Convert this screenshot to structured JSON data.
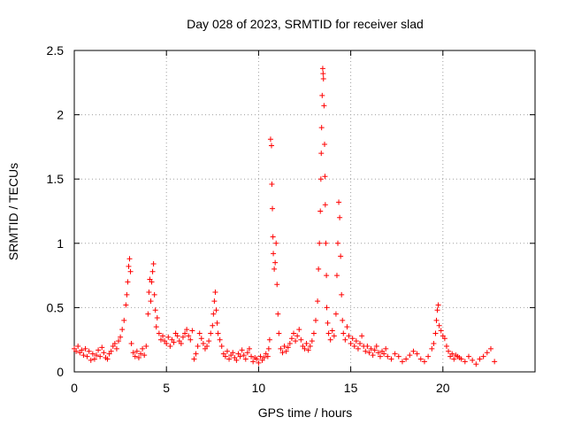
{
  "chart_data": {
    "type": "scatter",
    "title": "Day 028 of 2023, SRMTID for receiver slad",
    "xlabel": "GPS time / hours",
    "ylabel": "SRMTID / TECUs",
    "xlim": [
      0,
      25
    ],
    "ylim": [
      0,
      2.5
    ],
    "x_ticks": [
      0,
      5,
      10,
      15,
      20
    ],
    "x_tick_labels": [
      "0",
      "5",
      "10",
      "15",
      "20"
    ],
    "y_ticks": [
      0,
      0.5,
      1,
      1.5,
      2,
      2.5
    ],
    "y_tick_labels": [
      "0",
      "0.5",
      "1",
      "1.5",
      "2",
      "2.5"
    ],
    "grid": true,
    "marker": "+",
    "marker_color": "#ff0000",
    "series": [
      {
        "name": "SRMTID",
        "points": [
          [
            0.0,
            0.18
          ],
          [
            0.1,
            0.16
          ],
          [
            0.2,
            0.2
          ],
          [
            0.3,
            0.15
          ],
          [
            0.4,
            0.17
          ],
          [
            0.5,
            0.13
          ],
          [
            0.6,
            0.18
          ],
          [
            0.7,
            0.12
          ],
          [
            0.8,
            0.16
          ],
          [
            0.9,
            0.09
          ],
          [
            1.0,
            0.14
          ],
          [
            1.1,
            0.1
          ],
          [
            1.2,
            0.13
          ],
          [
            1.3,
            0.17
          ],
          [
            1.4,
            0.12
          ],
          [
            1.5,
            0.19
          ],
          [
            1.6,
            0.15
          ],
          [
            1.7,
            0.11
          ],
          [
            1.8,
            0.1
          ],
          [
            1.9,
            0.14
          ],
          [
            2.0,
            0.16
          ],
          [
            2.1,
            0.2
          ],
          [
            2.2,
            0.22
          ],
          [
            2.3,
            0.18
          ],
          [
            2.4,
            0.24
          ],
          [
            2.5,
            0.27
          ],
          [
            2.6,
            0.33
          ],
          [
            2.7,
            0.4
          ],
          [
            2.8,
            0.52
          ],
          [
            2.85,
            0.6
          ],
          [
            2.9,
            0.7
          ],
          [
            2.95,
            0.82
          ],
          [
            3.0,
            0.88
          ],
          [
            3.05,
            0.78
          ],
          [
            3.1,
            0.22
          ],
          [
            3.2,
            0.15
          ],
          [
            3.3,
            0.12
          ],
          [
            3.4,
            0.16
          ],
          [
            3.5,
            0.11
          ],
          [
            3.6,
            0.14
          ],
          [
            3.7,
            0.18
          ],
          [
            3.8,
            0.13
          ],
          [
            3.9,
            0.2
          ],
          [
            4.0,
            0.45
          ],
          [
            4.05,
            0.62
          ],
          [
            4.1,
            0.72
          ],
          [
            4.15,
            0.55
          ],
          [
            4.2,
            0.7
          ],
          [
            4.25,
            0.78
          ],
          [
            4.3,
            0.84
          ],
          [
            4.35,
            0.6
          ],
          [
            4.4,
            0.48
          ],
          [
            4.45,
            0.35
          ],
          [
            4.5,
            0.42
          ],
          [
            4.6,
            0.3
          ],
          [
            4.7,
            0.25
          ],
          [
            4.8,
            0.28
          ],
          [
            4.9,
            0.24
          ],
          [
            5.0,
            0.22
          ],
          [
            5.1,
            0.27
          ],
          [
            5.2,
            0.2
          ],
          [
            5.3,
            0.25
          ],
          [
            5.4,
            0.23
          ],
          [
            5.5,
            0.3
          ],
          [
            5.6,
            0.28
          ],
          [
            5.7,
            0.24
          ],
          [
            5.8,
            0.22
          ],
          [
            5.9,
            0.27
          ],
          [
            6.0,
            0.3
          ],
          [
            6.1,
            0.33
          ],
          [
            6.2,
            0.28
          ],
          [
            6.3,
            0.25
          ],
          [
            6.4,
            0.32
          ],
          [
            6.5,
            0.1
          ],
          [
            6.6,
            0.14
          ],
          [
            6.7,
            0.2
          ],
          [
            6.8,
            0.3
          ],
          [
            6.9,
            0.26
          ],
          [
            7.0,
            0.22
          ],
          [
            7.1,
            0.18
          ],
          [
            7.2,
            0.2
          ],
          [
            7.3,
            0.24
          ],
          [
            7.4,
            0.3
          ],
          [
            7.5,
            0.36
          ],
          [
            7.55,
            0.45
          ],
          [
            7.6,
            0.55
          ],
          [
            7.65,
            0.62
          ],
          [
            7.7,
            0.48
          ],
          [
            7.75,
            0.38
          ],
          [
            7.8,
            0.3
          ],
          [
            7.9,
            0.25
          ],
          [
            8.0,
            0.2
          ],
          [
            8.1,
            0.14
          ],
          [
            8.2,
            0.12
          ],
          [
            8.3,
            0.16
          ],
          [
            8.4,
            0.1
          ],
          [
            8.5,
            0.13
          ],
          [
            8.6,
            0.15
          ],
          [
            8.7,
            0.11
          ],
          [
            8.8,
            0.09
          ],
          [
            8.9,
            0.14
          ],
          [
            9.0,
            0.12
          ],
          [
            9.1,
            0.17
          ],
          [
            9.2,
            0.13
          ],
          [
            9.3,
            0.1
          ],
          [
            9.4,
            0.15
          ],
          [
            9.5,
            0.18
          ],
          [
            9.6,
            0.12
          ],
          [
            9.7,
            0.08
          ],
          [
            9.8,
            0.11
          ],
          [
            9.9,
            0.1
          ],
          [
            10.0,
            0.07
          ],
          [
            10.1,
            0.12
          ],
          [
            10.2,
            0.09
          ],
          [
            10.3,
            0.11
          ],
          [
            10.4,
            0.14
          ],
          [
            10.5,
            0.12
          ],
          [
            10.55,
            0.18
          ],
          [
            10.6,
            0.25
          ],
          [
            10.65,
            1.81
          ],
          [
            10.7,
            1.76
          ],
          [
            10.72,
            1.46
          ],
          [
            10.75,
            1.27
          ],
          [
            10.78,
            1.05
          ],
          [
            10.8,
            0.92
          ],
          [
            10.85,
            0.8
          ],
          [
            10.9,
            0.85
          ],
          [
            10.95,
            1.0
          ],
          [
            11.0,
            0.68
          ],
          [
            11.05,
            0.45
          ],
          [
            11.1,
            0.3
          ],
          [
            11.2,
            0.18
          ],
          [
            11.3,
            0.15
          ],
          [
            11.4,
            0.2
          ],
          [
            11.5,
            0.16
          ],
          [
            11.6,
            0.19
          ],
          [
            11.7,
            0.22
          ],
          [
            11.8,
            0.26
          ],
          [
            11.9,
            0.3
          ],
          [
            12.0,
            0.24
          ],
          [
            12.1,
            0.28
          ],
          [
            12.2,
            0.33
          ],
          [
            12.3,
            0.25
          ],
          [
            12.4,
            0.2
          ],
          [
            12.5,
            0.18
          ],
          [
            12.6,
            0.22
          ],
          [
            12.7,
            0.17
          ],
          [
            12.8,
            0.2
          ],
          [
            12.9,
            0.24
          ],
          [
            13.0,
            0.3
          ],
          [
            13.1,
            0.4
          ],
          [
            13.2,
            0.55
          ],
          [
            13.25,
            0.8
          ],
          [
            13.3,
            1.0
          ],
          [
            13.35,
            1.25
          ],
          [
            13.38,
            1.5
          ],
          [
            13.4,
            1.7
          ],
          [
            13.42,
            1.9
          ],
          [
            13.45,
            2.15
          ],
          [
            13.48,
            2.36
          ],
          [
            13.5,
            2.32
          ],
          [
            13.52,
            2.28
          ],
          [
            13.55,
            2.07
          ],
          [
            13.58,
            1.77
          ],
          [
            13.6,
            1.52
          ],
          [
            13.62,
            1.3
          ],
          [
            13.65,
            1.0
          ],
          [
            13.68,
            0.75
          ],
          [
            13.7,
            0.5
          ],
          [
            13.75,
            0.38
          ],
          [
            13.8,
            0.3
          ],
          [
            13.9,
            0.25
          ],
          [
            14.0,
            0.32
          ],
          [
            14.1,
            0.28
          ],
          [
            14.2,
            0.45
          ],
          [
            14.25,
            0.75
          ],
          [
            14.3,
            1.0
          ],
          [
            14.35,
            1.32
          ],
          [
            14.4,
            1.2
          ],
          [
            14.45,
            0.9
          ],
          [
            14.5,
            0.6
          ],
          [
            14.55,
            0.4
          ],
          [
            14.6,
            0.3
          ],
          [
            14.7,
            0.25
          ],
          [
            14.8,
            0.35
          ],
          [
            14.9,
            0.28
          ],
          [
            15.0,
            0.22
          ],
          [
            15.1,
            0.26
          ],
          [
            15.2,
            0.2
          ],
          [
            15.3,
            0.24
          ],
          [
            15.4,
            0.18
          ],
          [
            15.5,
            0.22
          ],
          [
            15.6,
            0.28
          ],
          [
            15.7,
            0.2
          ],
          [
            15.8,
            0.16
          ],
          [
            15.9,
            0.2
          ],
          [
            16.0,
            0.15
          ],
          [
            16.1,
            0.18
          ],
          [
            16.2,
            0.13
          ],
          [
            16.3,
            0.17
          ],
          [
            16.4,
            0.2
          ],
          [
            16.5,
            0.15
          ],
          [
            16.6,
            0.12
          ],
          [
            16.7,
            0.16
          ],
          [
            16.8,
            0.14
          ],
          [
            16.9,
            0.18
          ],
          [
            17.0,
            0.12
          ],
          [
            17.2,
            0.1
          ],
          [
            17.4,
            0.14
          ],
          [
            17.6,
            0.12
          ],
          [
            17.8,
            0.08
          ],
          [
            18.0,
            0.1
          ],
          [
            18.2,
            0.13
          ],
          [
            18.4,
            0.16
          ],
          [
            18.6,
            0.14
          ],
          [
            18.8,
            0.1
          ],
          [
            19.0,
            0.08
          ],
          [
            19.2,
            0.12
          ],
          [
            19.4,
            0.18
          ],
          [
            19.5,
            0.22
          ],
          [
            19.6,
            0.3
          ],
          [
            19.65,
            0.4
          ],
          [
            19.7,
            0.48
          ],
          [
            19.75,
            0.52
          ],
          [
            19.8,
            0.36
          ],
          [
            19.9,
            0.32
          ],
          [
            20.0,
            0.28
          ],
          [
            20.1,
            0.26
          ],
          [
            20.2,
            0.2
          ],
          [
            20.3,
            0.16
          ],
          [
            20.4,
            0.12
          ],
          [
            20.5,
            0.14
          ],
          [
            20.6,
            0.1
          ],
          [
            20.7,
            0.13
          ],
          [
            20.8,
            0.12
          ],
          [
            20.9,
            0.11
          ],
          [
            21.0,
            0.1
          ],
          [
            21.2,
            0.08
          ],
          [
            21.4,
            0.12
          ],
          [
            21.6,
            0.09
          ],
          [
            21.8,
            0.06
          ],
          [
            22.0,
            0.1
          ],
          [
            22.2,
            0.12
          ],
          [
            22.4,
            0.15
          ],
          [
            22.6,
            0.18
          ],
          [
            22.8,
            0.08
          ]
        ]
      }
    ]
  }
}
